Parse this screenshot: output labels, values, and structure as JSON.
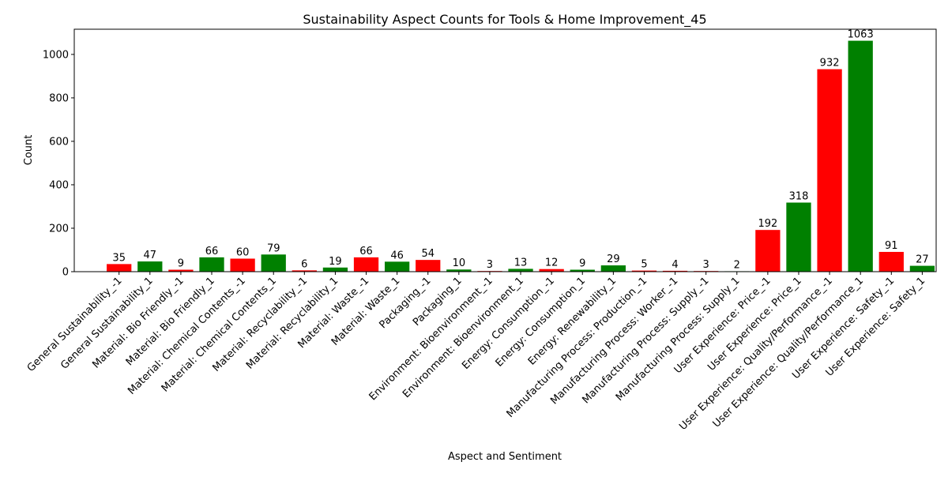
{
  "chart_data": {
    "type": "bar",
    "title": "Sustainability Aspect Counts for Tools & Home Improvement_45",
    "xlabel": "Aspect and Sentiment",
    "ylabel": "Count",
    "ylim": [
      0,
      1116
    ],
    "yticks": [
      0,
      200,
      400,
      600,
      800,
      1000
    ],
    "grid": false,
    "colors": {
      "negative": "#ff0000",
      "positive": "#008000"
    },
    "categories": [
      "General Sustainability_-1",
      "General Sustainability_1",
      "Material: Bio Friendly_-1",
      "Material: Bio Friendly_1",
      "Material: Chemical Contents_-1",
      "Material: Chemical Contents_1",
      "Material: Recyclability_-1",
      "Material: Recyclability_1",
      "Material: Waste_-1",
      "Material: Waste_1",
      "Packaging_-1",
      "Packaging_1",
      "Environment: Bioenvironment_-1",
      "Environment: Bioenvironment_1",
      "Energy: Consumption_-1",
      "Energy: Consumption_1",
      "Energy: Renewability_1",
      "Manufacturing Process: Production_-1",
      "Manufacturing Process: Worker_-1",
      "Manufacturing Process: Supply_-1",
      "Manufacturing Process: Supply_1",
      "User Experience: Price_-1",
      "User Experience: Price_1",
      "User Experience: Quality/Performance_-1",
      "User Experience: Quality/Performance_1",
      "User Experience: Safety_-1",
      "User Experience: Safety_1"
    ],
    "values": [
      35,
      47,
      9,
      66,
      60,
      79,
      6,
      19,
      66,
      46,
      54,
      10,
      3,
      13,
      12,
      9,
      29,
      5,
      4,
      3,
      2,
      192,
      318,
      932,
      1063,
      91,
      27
    ],
    "sentiment": [
      "negative",
      "positive",
      "negative",
      "positive",
      "negative",
      "positive",
      "negative",
      "positive",
      "negative",
      "positive",
      "negative",
      "positive",
      "negative",
      "positive",
      "negative",
      "positive",
      "positive",
      "negative",
      "negative",
      "negative",
      "positive",
      "negative",
      "positive",
      "negative",
      "positive",
      "negative",
      "positive"
    ]
  }
}
